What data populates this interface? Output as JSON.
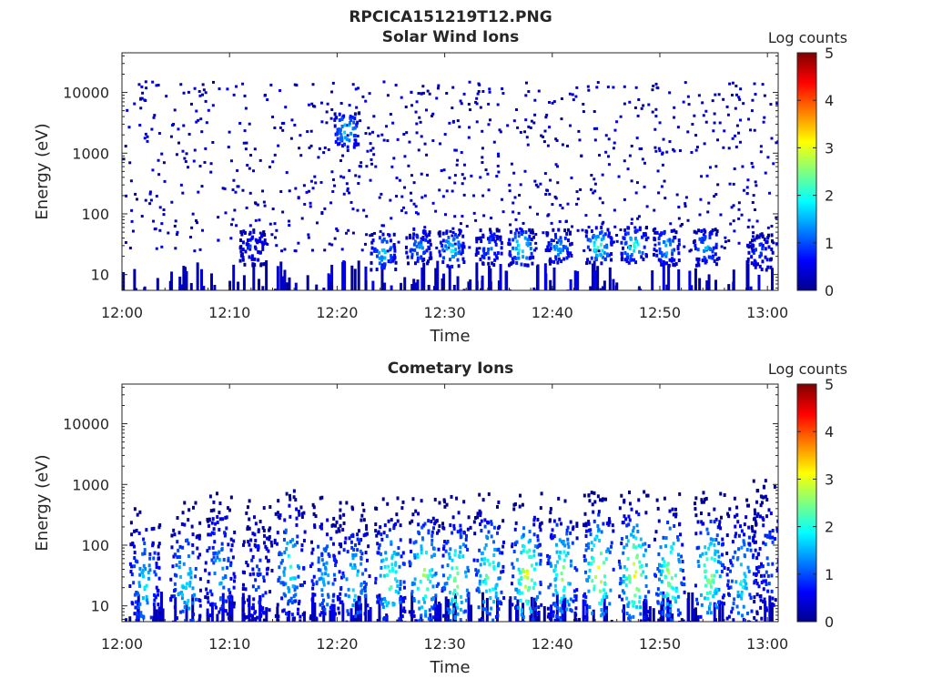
{
  "figure_title": "RPCICA151219T12.PNG",
  "colors": {
    "colormap": [
      "#00008f",
      "#0000ff",
      "#0080ff",
      "#00ffff",
      "#80ff80",
      "#ffff00",
      "#ff8000",
      "#ff0000",
      "#800000"
    ],
    "axis": "#262626"
  },
  "chart_data": [
    {
      "type": "heatmap",
      "title": "Solar Wind Ions",
      "xlabel": "Time",
      "ylabel": "Energy (eV)",
      "x_ticks": [
        "12:00",
        "12:10",
        "12:20",
        "12:30",
        "12:40",
        "12:50",
        "13:00"
      ],
      "x_range_minutes": [
        0,
        61
      ],
      "y_scale": "log",
      "y_ticks": [
        "10",
        "100",
        "1000",
        "10000"
      ],
      "y_range": [
        5.5,
        45000
      ],
      "colorbar": {
        "label": "Log counts",
        "range": [
          0,
          5
        ],
        "ticks": [
          "0",
          "1",
          "2",
          "3",
          "4",
          "5"
        ]
      },
      "background_dots": true,
      "bands": [
        {
          "t": 12.0,
          "e": 30,
          "v": 1.0
        },
        {
          "t": 20.8,
          "e": 2500,
          "v": 2.0
        },
        {
          "t": 24.2,
          "e": 25,
          "v": 1.8
        },
        {
          "t": 27.5,
          "e": 30,
          "v": 1.5
        },
        {
          "t": 30.5,
          "e": 28,
          "v": 2.0
        },
        {
          "t": 34.0,
          "e": 30,
          "v": 1.2
        },
        {
          "t": 37.0,
          "e": 30,
          "v": 2.3
        },
        {
          "t": 40.5,
          "e": 30,
          "v": 1.5
        },
        {
          "t": 44.2,
          "e": 32,
          "v": 2.3
        },
        {
          "t": 47.5,
          "e": 32,
          "v": 2.2
        },
        {
          "t": 50.5,
          "e": 30,
          "v": 1.8
        },
        {
          "t": 54.2,
          "e": 30,
          "v": 1.6
        },
        {
          "t": 59.2,
          "e": 25,
          "v": 1.0
        }
      ]
    },
    {
      "type": "heatmap",
      "title": "Cometary Ions",
      "xlabel": "Time",
      "ylabel": "Energy (eV)",
      "x_ticks": [
        "12:00",
        "12:10",
        "12:20",
        "12:30",
        "12:40",
        "12:50",
        "13:00"
      ],
      "x_range_minutes": [
        0,
        61
      ],
      "y_scale": "log",
      "y_ticks": [
        "10",
        "100",
        "1000",
        "10000"
      ],
      "y_range": [
        5.5,
        45000
      ],
      "colorbar": {
        "label": "Log counts",
        "range": [
          0,
          5
        ],
        "ticks": [
          "0",
          "1",
          "2",
          "3",
          "4",
          "5"
        ]
      },
      "background_dots": false,
      "bands": [
        {
          "t": 2.0,
          "e": 25,
          "v": 1.8
        },
        {
          "t": 5.8,
          "e": 25,
          "v": 2.0
        },
        {
          "t": 9.0,
          "e": 40,
          "v": 1.6
        },
        {
          "t": 12.5,
          "e": 30,
          "v": 1.0
        },
        {
          "t": 15.5,
          "e": 50,
          "v": 2.0
        },
        {
          "t": 18.8,
          "e": 30,
          "v": 1.6
        },
        {
          "t": 21.5,
          "e": 25,
          "v": 2.0
        },
        {
          "t": 24.8,
          "e": 30,
          "v": 2.4
        },
        {
          "t": 28.0,
          "e": 35,
          "v": 2.7
        },
        {
          "t": 31.0,
          "e": 30,
          "v": 2.7
        },
        {
          "t": 34.0,
          "e": 35,
          "v": 2.5
        },
        {
          "t": 37.5,
          "e": 35,
          "v": 3.1
        },
        {
          "t": 40.8,
          "e": 35,
          "v": 2.6
        },
        {
          "t": 44.2,
          "e": 38,
          "v": 3.2
        },
        {
          "t": 47.5,
          "e": 38,
          "v": 3.3
        },
        {
          "t": 50.8,
          "e": 35,
          "v": 2.8
        },
        {
          "t": 54.5,
          "e": 35,
          "v": 2.7
        },
        {
          "t": 57.5,
          "e": 30,
          "v": 2.0
        },
        {
          "t": 60.0,
          "e": 60,
          "v": 1.2
        }
      ]
    }
  ]
}
